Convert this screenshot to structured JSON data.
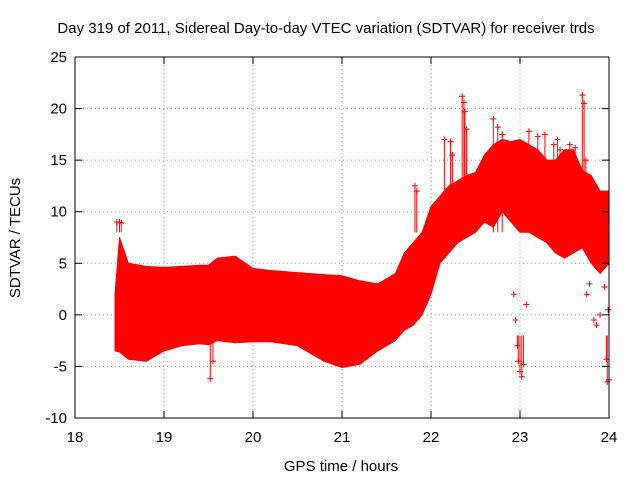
{
  "chart_data": {
    "type": "scatter",
    "title": "Day 319 of 2011, Sidereal Day-to-day VTEC variation (SDTVAR) for receiver trds",
    "xlabel": "GPS time / hours",
    "ylabel": "SDTVAR / TECUs",
    "xlim": [
      18,
      24
    ],
    "ylim": [
      -10,
      25
    ],
    "xticks": [
      "18",
      "19",
      "20",
      "21",
      "22",
      "23",
      "24"
    ],
    "yticks": [
      "-10",
      "-5",
      "0",
      "5",
      "10",
      "15",
      "20",
      "25"
    ],
    "grid": true,
    "marker": "+",
    "series_color": "#ff0000",
    "series": [
      {
        "name": "SDTVAR",
        "envelope": {
          "x": [
            18.45,
            18.5,
            18.6,
            18.8,
            19.0,
            19.2,
            19.4,
            19.5,
            19.6,
            19.8,
            20.0,
            20.2,
            20.5,
            20.8,
            21.0,
            21.2,
            21.4,
            21.6,
            21.7,
            21.8,
            21.9,
            22.0,
            22.1,
            22.2,
            22.3,
            22.4,
            22.5,
            22.6,
            22.7,
            22.8,
            22.9,
            23.0,
            23.1,
            23.2,
            23.3,
            23.4,
            23.5,
            23.6,
            23.7,
            23.8,
            23.9,
            24.0
          ],
          "upper": [
            2.0,
            7.5,
            5.0,
            4.7,
            4.6,
            4.7,
            4.8,
            4.8,
            5.5,
            5.7,
            4.5,
            4.3,
            4.1,
            3.9,
            3.8,
            3.3,
            3.0,
            4.0,
            6.0,
            7.0,
            8.0,
            10.5,
            11.5,
            12.5,
            13.0,
            13.5,
            13.8,
            15.5,
            16.5,
            17.0,
            16.8,
            17.0,
            16.5,
            16.0,
            15.0,
            15.0,
            16.0,
            16.0,
            14.0,
            13.5,
            12.0,
            12.0
          ],
          "lower": [
            -3.5,
            -3.6,
            -4.3,
            -4.5,
            -3.5,
            -3.0,
            -2.8,
            -2.9,
            -2.5,
            -2.7,
            -2.6,
            -2.6,
            -3.0,
            -4.5,
            -5.1,
            -4.8,
            -3.5,
            -2.5,
            -1.5,
            -1.0,
            0.0,
            2.0,
            5.0,
            6.0,
            7.0,
            7.5,
            8.0,
            9.0,
            8.5,
            10.0,
            9.0,
            8.0,
            8.0,
            7.5,
            7.0,
            6.0,
            5.5,
            6.0,
            6.5,
            5.0,
            4.0,
            5.0
          ]
        },
        "outliers": [
          [
            18.47,
            9.0
          ],
          [
            18.5,
            9.0
          ],
          [
            18.52,
            8.9
          ],
          [
            19.52,
            -6.2
          ],
          [
            19.55,
            -4.5
          ],
          [
            21.82,
            12.5
          ],
          [
            21.84,
            12.0
          ],
          [
            22.15,
            17.0
          ],
          [
            22.22,
            16.8
          ],
          [
            22.24,
            15.5
          ],
          [
            22.35,
            21.2
          ],
          [
            22.37,
            20.6
          ],
          [
            22.38,
            19.7
          ],
          [
            22.4,
            18.0
          ],
          [
            22.7,
            19.0
          ],
          [
            22.75,
            18.2
          ],
          [
            22.8,
            17.5
          ],
          [
            22.93,
            2.0
          ],
          [
            22.95,
            -0.5
          ],
          [
            22.97,
            -3.0
          ],
          [
            22.98,
            -4.5
          ],
          [
            23.0,
            -5.5
          ],
          [
            23.02,
            -6.0
          ],
          [
            23.04,
            -4.8
          ],
          [
            23.07,
            1.0
          ],
          [
            23.1,
            17.8
          ],
          [
            23.2,
            17.3
          ],
          [
            23.28,
            17.5
          ],
          [
            23.38,
            16.5
          ],
          [
            23.42,
            17.0
          ],
          [
            23.45,
            16.0
          ],
          [
            23.56,
            16.5
          ],
          [
            23.6,
            15.7
          ],
          [
            23.62,
            16.2
          ],
          [
            23.7,
            21.3
          ],
          [
            23.72,
            20.5
          ],
          [
            23.74,
            15.0
          ],
          [
            23.75,
            2.0
          ],
          [
            23.78,
            3.0
          ],
          [
            23.83,
            -0.5
          ],
          [
            23.86,
            -1.0
          ],
          [
            23.9,
            0.0
          ],
          [
            23.95,
            2.7
          ],
          [
            23.97,
            -4.3
          ],
          [
            23.98,
            -6.5
          ],
          [
            24.0,
            -6.3
          ],
          [
            23.99,
            0.5
          ]
        ]
      }
    ]
  }
}
